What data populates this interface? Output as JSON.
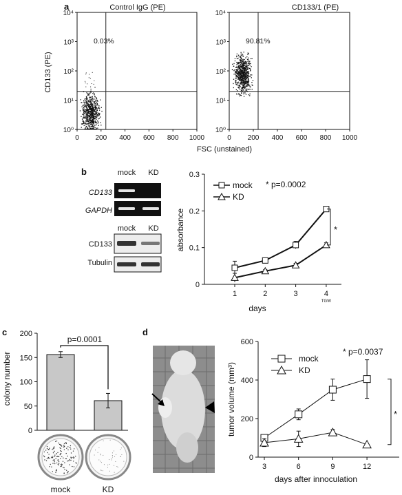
{
  "panel_a": {
    "label": "a",
    "x_axis_label": "FSC (unstained)",
    "y_axis_label": "CD133 (PE)",
    "x_ticks": [
      "0",
      "200",
      "400",
      "600",
      "800",
      "1000"
    ],
    "plots": [
      {
        "title": "Control IgG (PE)",
        "y_ticks": [
          "10⁰",
          "10¹",
          "10²",
          "10³",
          "10⁴"
        ],
        "percent": "0.03%",
        "gate_x": 240,
        "cluster": "low"
      },
      {
        "title": "CD133/1 (PE)",
        "y_ticks": [
          "10⁰",
          "10¹",
          "10²",
          "10³",
          "10⁴"
        ],
        "percent": "90.81%",
        "gate_x": 240,
        "cluster": "high"
      }
    ]
  },
  "panel_b": {
    "label": "b",
    "gel": {
      "header_top": [
        "mock",
        "KD"
      ],
      "rows_top": [
        "CD133",
        "GAPDH"
      ],
      "header_bottom": [
        "mock",
        "KD"
      ],
      "rows_bottom": [
        "CD133",
        "Tubulin"
      ]
    },
    "y_ticks": [
      "0",
      "0.1",
      "0.2",
      "0.3"
    ],
    "x_ticks": [
      "1",
      "2",
      "3",
      "4"
    ],
    "x_tick_sub": "TGW",
    "legend": [
      {
        "name": "mock",
        "marker": "square"
      },
      {
        "name": "KD",
        "marker": "triangle"
      }
    ],
    "pvalue": "* p=0.0002",
    "star": "*"
  },
  "panel_c": {
    "label": "c",
    "y_ticks": [
      "0",
      "50",
      "100",
      "150",
      "200"
    ],
    "pvalue": "p=0.0001",
    "dish_labels": [
      "mock",
      "KD"
    ]
  },
  "panel_d": {
    "label": "d",
    "y_ticks": [
      "0",
      "200",
      "400",
      "600"
    ],
    "x_ticks": [
      "3",
      "6",
      "9",
      "12"
    ],
    "legend": [
      {
        "name": "mock",
        "marker": "square"
      },
      {
        "name": "KD",
        "marker": "triangle"
      }
    ],
    "pvalue": "* p=0.0037",
    "star": "*"
  },
  "chart_data": [
    {
      "type": "line",
      "panel": "b",
      "xlabel": "days",
      "ylabel": "absorbance",
      "x": [
        1,
        2,
        3,
        4
      ],
      "ylim": [
        0,
        0.3
      ],
      "series": [
        {
          "name": "mock",
          "values": [
            0.045,
            0.065,
            0.107,
            0.205
          ],
          "errors": [
            0.018,
            0.006,
            0.01,
            0.007
          ]
        },
        {
          "name": "KD",
          "values": [
            0.018,
            0.036,
            0.052,
            0.107
          ],
          "errors": [
            0.012,
            0.004,
            0.005,
            0.006
          ]
        }
      ]
    },
    {
      "type": "bar",
      "panel": "c",
      "ylabel": "colony number",
      "categories": [
        "mock",
        "KD"
      ],
      "values": [
        156,
        61
      ],
      "errors": [
        6,
        15
      ],
      "ylim": [
        0,
        200
      ]
    },
    {
      "type": "line",
      "panel": "d",
      "xlabel": "days after innoculation",
      "ylabel": "tumor volume (mm³)",
      "x": [
        3,
        6,
        9,
        12
      ],
      "ylim": [
        0,
        600
      ],
      "series": [
        {
          "name": "mock",
          "values": [
            100,
            222,
            350,
            405
          ],
          "errors": [
            0,
            28,
            55,
            100
          ]
        },
        {
          "name": "KD",
          "values": [
            75,
            95,
            128,
            65
          ],
          "errors": [
            20,
            40,
            15,
            0
          ]
        }
      ]
    }
  ]
}
